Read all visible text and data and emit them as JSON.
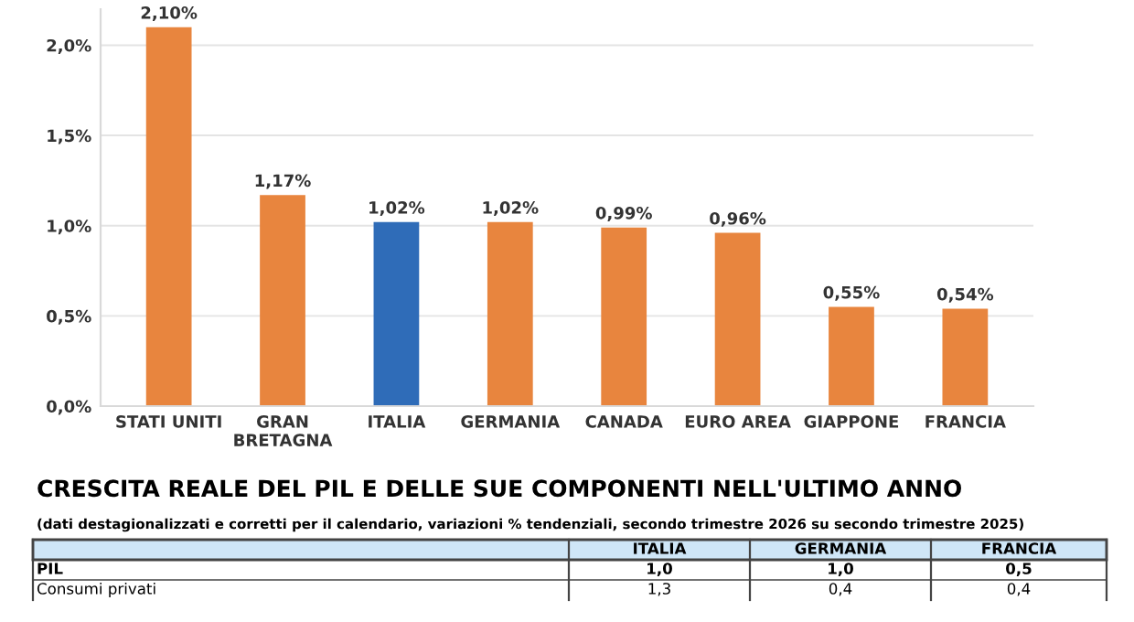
{
  "chart_data": [
    {
      "type": "bar",
      "categories": [
        "STATI UNITI",
        "GRAN\nBRETAGNA",
        "ITALIA",
        "GERMANIA",
        "CANADA",
        "EURO AREA",
        "GIAPPONE",
        "FRANCIA"
      ],
      "values": [
        2.1,
        1.17,
        1.02,
        1.02,
        0.99,
        0.96,
        0.55,
        0.54
      ],
      "colors": [
        "#e8853e",
        "#e8853e",
        "#2f6cb8",
        "#e8853e",
        "#e8853e",
        "#e8853e",
        "#e8853e",
        "#e8853e"
      ],
      "value_labels": [
        "2,10%",
        "1,17%",
        "1,02%",
        "1,02%",
        "0,99%",
        "0,96%",
        "0,55%",
        "0,54%"
      ],
      "ylim": [
        0,
        2.2
      ],
      "yticks": [
        {
          "value": 0,
          "label": "0,0%"
        },
        {
          "value": 0.5,
          "label": "0,5%"
        },
        {
          "value": 1.0,
          "label": "1,0%"
        },
        {
          "value": 1.5,
          "label": "1,5%"
        },
        {
          "value": 2.0,
          "label": "2,0%"
        }
      ],
      "grid": "y"
    },
    {
      "type": "other",
      "title": "CRESCITA REALE DEL PIL E DELLE SUE COMPONENTI NELL'ULTIMO ANNO",
      "subtitle": "(dati destagionalizzati e corretti per il calendario, variazioni % tendenziali, secondo trimestre 2026 su secondo trimestre 2025)",
      "categories": [
        "ITALIA",
        "GERMANIA",
        "FRANCIA"
      ],
      "y_categories": [
        "PIL",
        "Consumi privati"
      ],
      "cell_labels": [
        [
          "1,0",
          "1,0",
          "0,5"
        ],
        [
          "1,3",
          "0,4",
          "0,4"
        ]
      ]
    }
  ]
}
